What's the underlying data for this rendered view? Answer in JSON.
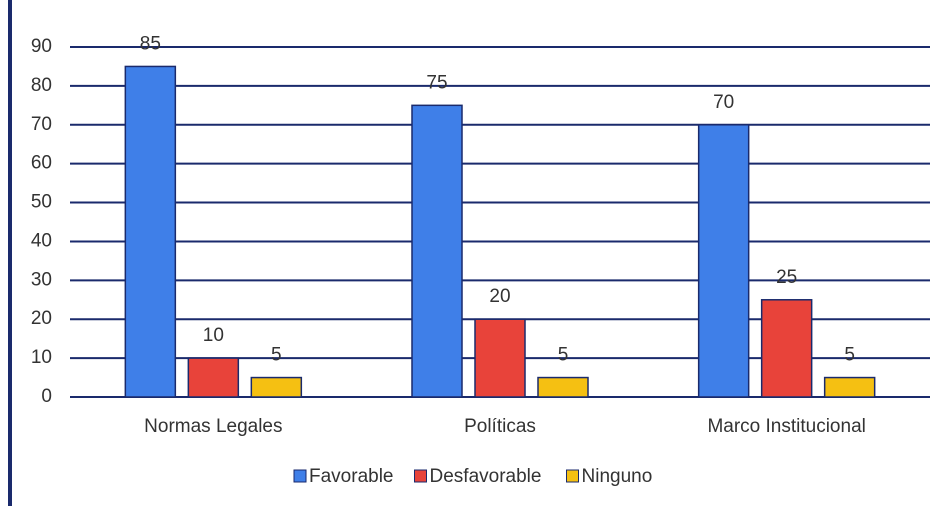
{
  "chart_data": {
    "type": "bar",
    "categories": [
      "Normas Legales",
      "Políticas",
      "Marco Institucional"
    ],
    "series": [
      {
        "name": "Favorable",
        "color": "#3f7fe8",
        "values": [
          85,
          75,
          70
        ]
      },
      {
        "name": "Desfavorable",
        "color": "#e8433a",
        "values": [
          10,
          20,
          25
        ]
      },
      {
        "name": "Ninguno",
        "color": "#f5c012",
        "values": [
          5,
          5,
          5
        ]
      }
    ],
    "ylim": [
      0,
      90
    ],
    "yticks": [
      0,
      10,
      20,
      30,
      40,
      50,
      60,
      70,
      80,
      90
    ],
    "grid": true,
    "legend": "bottom",
    "data_labels": true
  }
}
